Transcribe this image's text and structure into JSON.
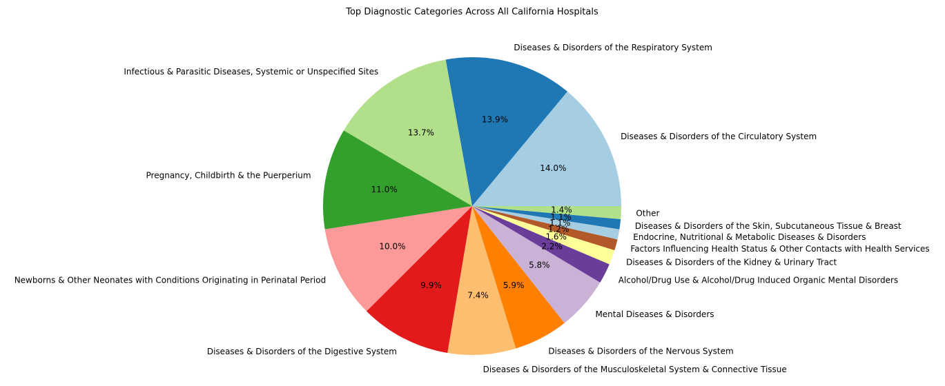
{
  "chart_data": {
    "type": "pie",
    "title": "Top Diagnostic Categories Across All California Hospitals",
    "start_angle_deg": 0,
    "direction": "counterclockwise",
    "slices": [
      {
        "label": "Diseases & Disorders of the Circulatory System",
        "value": 14.0,
        "pct_label": "14.0%",
        "color": "#a6cee3"
      },
      {
        "label": "Diseases & Disorders of the Respiratory System",
        "value": 13.9,
        "pct_label": "13.9%",
        "color": "#1f78b4"
      },
      {
        "label": "Infectious & Parasitic Diseases, Systemic or Unspecified Sites",
        "value": 13.7,
        "pct_label": "13.7%",
        "color": "#b2df8a"
      },
      {
        "label": "Pregnancy, Childbirth & the Puerperium",
        "value": 11.0,
        "pct_label": "11.0%",
        "color": "#33a02c"
      },
      {
        "label": "Newborns & Other Neonates with Conditions Originating in Perinatal Period",
        "value": 10.0,
        "pct_label": "10.0%",
        "color": "#fb9a99"
      },
      {
        "label": "Diseases & Disorders of the Digestive System",
        "value": 9.9,
        "pct_label": "9.9%",
        "color": "#e31a1c"
      },
      {
        "label": "Diseases & Disorders of the Musculoskeletal System & Connective Tissue",
        "value": 7.4,
        "pct_label": "7.4%",
        "color": "#fdbf6f"
      },
      {
        "label": "Diseases & Disorders of the Nervous System",
        "value": 5.9,
        "pct_label": "5.9%",
        "color": "#ff7f00"
      },
      {
        "label": "Mental Diseases & Disorders",
        "value": 5.8,
        "pct_label": "5.8%",
        "color": "#cab2d6"
      },
      {
        "label": "Alcohol/Drug Use & Alcohol/Drug Induced Organic Mental Disorders",
        "value": 2.2,
        "pct_label": "2.2%",
        "color": "#6a3d9a"
      },
      {
        "label": "Diseases & Disorders of the Kidney & Urinary Tract",
        "value": 1.6,
        "pct_label": "1.6%",
        "color": "#ffff99"
      },
      {
        "label": "Factors Influencing Health Status & Other Contacts with Health Services",
        "value": 1.2,
        "pct_label": "1.2%",
        "color": "#b15928"
      },
      {
        "label": "Endocrine, Nutritional & Metabolic Diseases & Disorders",
        "value": 1.1,
        "pct_label": "1.1%",
        "color": "#a6cee3"
      },
      {
        "label": "Diseases & Disorders of the Skin, Subcutaneous Tissue & Breast",
        "value": 1.1,
        "pct_label": "1.1%",
        "color": "#1f78b4"
      },
      {
        "label": "Other",
        "value": 1.4,
        "pct_label": "1.4%",
        "color": "#b2df8a"
      }
    ]
  }
}
